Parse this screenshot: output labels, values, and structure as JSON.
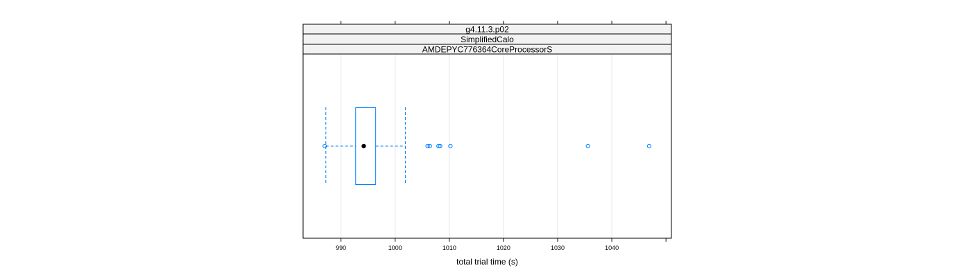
{
  "chart_data": {
    "type": "boxplot",
    "strips": [
      "g4.11.3.p02",
      "SimplifiedCalo",
      "AMDEPYC776364CoreProcessorS"
    ],
    "xlabel": "total trial time (s)",
    "xlim": [
      983,
      1051
    ],
    "xticks": [
      990,
      1000,
      1010,
      1020,
      1030,
      1040
    ],
    "grid": true,
    "box": {
      "whisker_low": 987.2,
      "q1": 992.7,
      "median": 994.2,
      "q3": 996.4,
      "whisker_high": 1001.9
    },
    "outliers": [
      987.0,
      1006.0,
      1006.4,
      1008.0,
      1008.3,
      1010.2,
      1035.6,
      1046.9
    ],
    "colors": {
      "box": "#0080ff",
      "median": "#000000",
      "grid": "#e6e6e6",
      "strip_bg": "#f2f2f2"
    }
  }
}
